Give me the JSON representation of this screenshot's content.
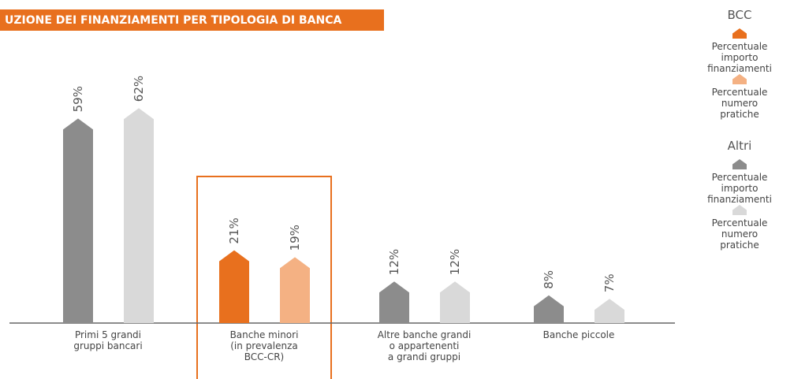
{
  "chart_data": {
    "type": "bar",
    "title": "UZIONE DEI FINANZIAMENTI PER TIPOLOGIA DI BANCA",
    "categories": [
      "Primi 5 grandi\ngruppi bancari",
      "Banche minori\n(in prevalenza\nBCC-CR)",
      "Altre banche grandi\no appartenenti\na grandi gruppi",
      "Banche piccole"
    ],
    "series": [
      {
        "values": [
          59,
          21,
          12,
          8
        ],
        "value_labels": [
          "59%",
          "21%",
          "12%",
          "8%"
        ],
        "colors": [
          "#8c8c8c",
          "#e8701e",
          "#8c8c8c",
          "#8c8c8c"
        ]
      },
      {
        "values": [
          62,
          19,
          12,
          7
        ],
        "value_labels": [
          "62%",
          "19%",
          "12%",
          "7%"
        ],
        "colors": [
          "#d9d9d9",
          "#f4b183",
          "#d9d9d9",
          "#d9d9d9"
        ]
      }
    ],
    "legend_groups": [
      {
        "name": "BCC",
        "entries": [
          {
            "name": "Percentuale importo\nfinanziamenti",
            "color": "#e8701e"
          },
          {
            "name": "Percentuale\nnumero pratiche",
            "color": "#f4b183"
          }
        ]
      },
      {
        "name": "Altri",
        "entries": [
          {
            "name": "Percentuale importo\nfinanziamenti",
            "color": "#8c8c8c"
          },
          {
            "name": "Percentuale\nnumero pratiche",
            "color": "#d9d9d9"
          }
        ]
      }
    ],
    "ylim": [
      0,
      70
    ]
  }
}
